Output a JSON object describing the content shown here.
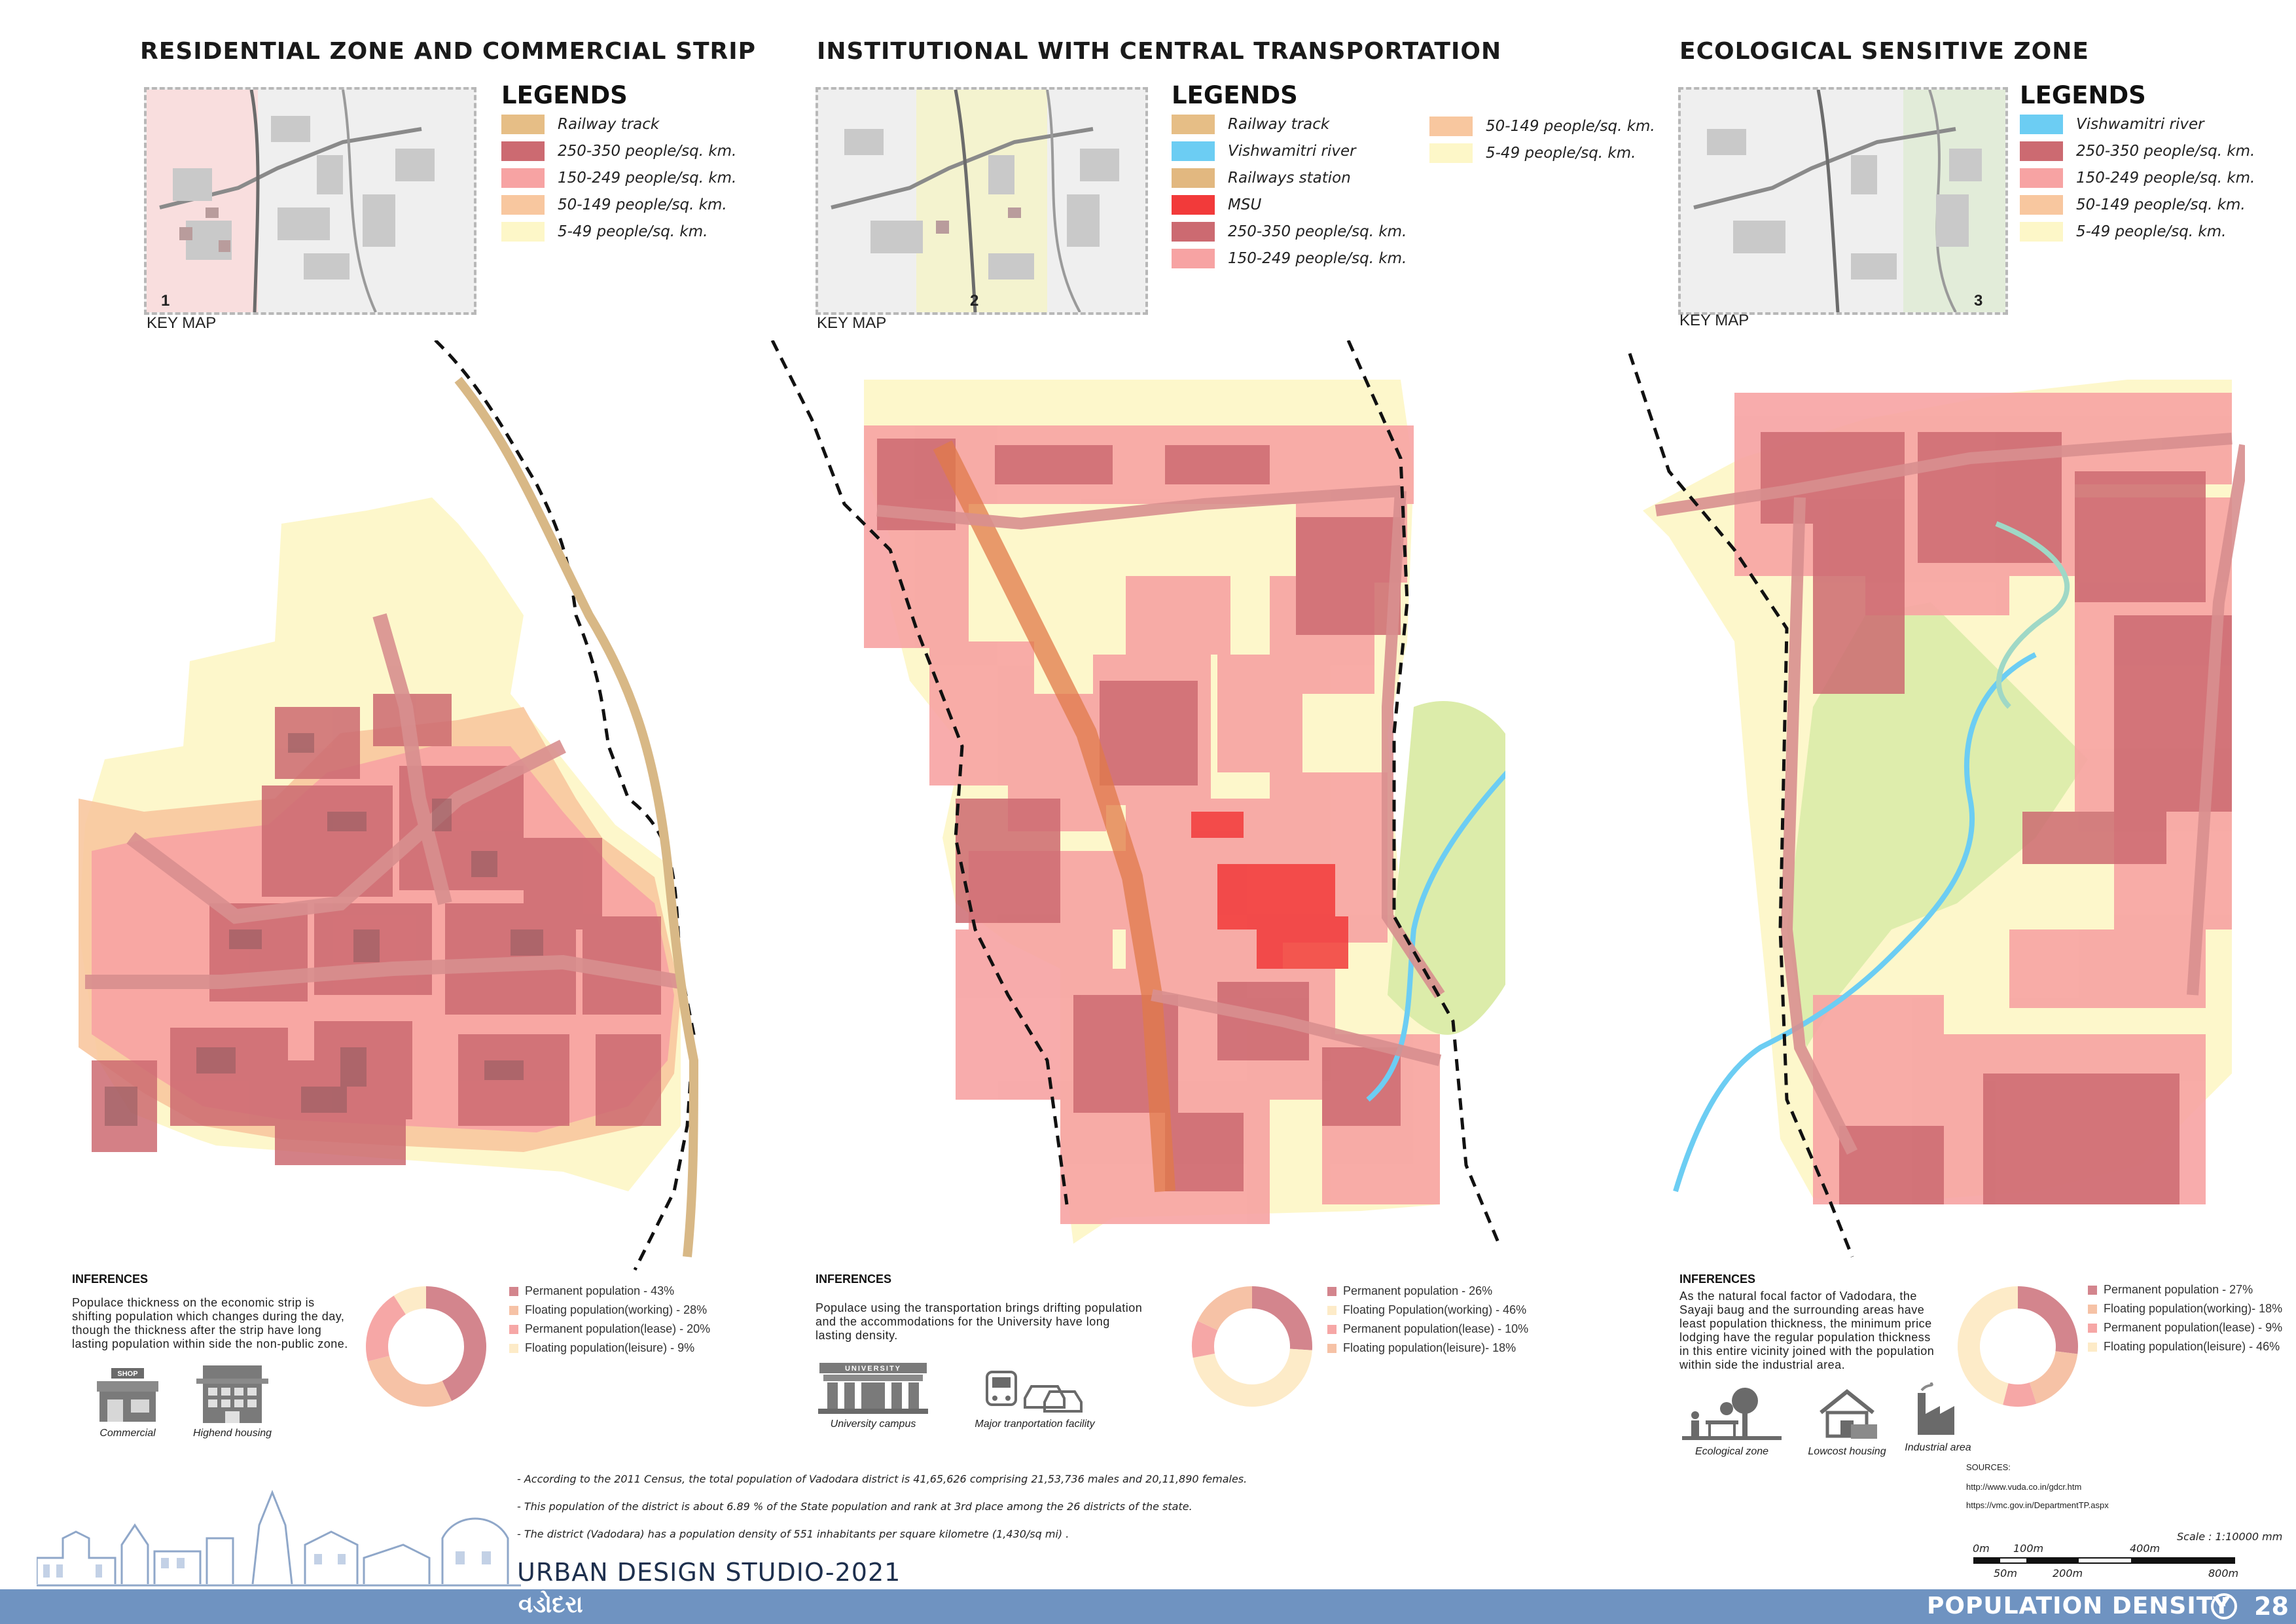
{
  "colors": {
    "railway": "#e6be86",
    "river": "#6ccdf3",
    "station": "#e2b880",
    "msu": "#f23a3a",
    "d250_350": "#cc6a71",
    "d150_249": "#f7a3a3",
    "d50_149": "#f8c79f",
    "d5_49": "#fdf7c8",
    "ecoPark": "#dcecaa",
    "footer": "#6f93c1",
    "pieDark": "#d3858d",
    "pieMid": "#f6a7a6",
    "pieLight": "#f6c2a6",
    "pieCream": "#fdebc8"
  },
  "sections": [
    {
      "title": "RESIDENTIAL ZONE AND COMMERCIAL STRIP",
      "keymap_number": "1",
      "keymap_label": "KEY MAP",
      "legends_title": "LEGENDS",
      "legend": [
        {
          "label": "Railway track",
          "color": "#e6be86"
        },
        {
          "label": "250-350 people/sq. km.",
          "color": "#cc6a71"
        },
        {
          "label": "150-249 people/sq. km.",
          "color": "#f7a3a3"
        },
        {
          "label": "50-149 people/sq. km.",
          "color": "#f8c79f"
        },
        {
          "label": "5-49 people/sq. km.",
          "color": "#fdf7c8"
        }
      ],
      "inferences_title": "INFERENCES",
      "inferences_text": "Populace thickness on the economic strip is shifting population which changes during the day, though the thickness after the strip have long lasting population within side the non-public zone.",
      "pie": [
        {
          "label": "Permanent population - 43%",
          "value": 43,
          "color": "#d3858d"
        },
        {
          "label": "Floating population(working) - 28%",
          "value": 28,
          "color": "#f6c2a6"
        },
        {
          "label": "Permanent population(lease) - 20%",
          "value": 20,
          "color": "#f6a7a6"
        },
        {
          "label": "Floating population(leisure) - 9%",
          "value": 9,
          "color": "#fdebc8"
        }
      ],
      "icons": [
        {
          "icon": "shop-icon",
          "caption": "Commercial",
          "sign": "SHOP"
        },
        {
          "icon": "housing-icon",
          "caption": "Highend housing"
        }
      ]
    },
    {
      "title": "INSTITUTIONAL WITH CENTRAL TRANSPORTATION",
      "keymap_number": "2",
      "keymap_label": "KEY MAP",
      "legends_title": "LEGENDS",
      "legend": [
        {
          "label": "Railway track",
          "color": "#e6be86"
        },
        {
          "label": "Vishwamitri river",
          "color": "#6ccdf3"
        },
        {
          "label": "Railways station",
          "color": "#e2b880"
        },
        {
          "label": "MSU",
          "color": "#f23a3a"
        },
        {
          "label": "250-350 people/sq. km.",
          "color": "#cc6a71"
        },
        {
          "label": "150-249 people/sq. km.",
          "color": "#f7a3a3"
        },
        {
          "label": "50-149 people/sq. km.",
          "color": "#f8c79f"
        },
        {
          "label": "5-49 people/sq. km.",
          "color": "#fdf7c8"
        }
      ],
      "inferences_title": "INFERENCES",
      "inferences_text": "Populace using the transportation brings drifting population and the accommodations for the University have long lasting density.",
      "pie": [
        {
          "label": "Permanent population - 26%",
          "value": 26,
          "color": "#d3858d"
        },
        {
          "label": "Floating Population(working) - 46%",
          "value": 46,
          "color": "#fdebc8"
        },
        {
          "label": "Permanent population(lease) - 10%",
          "value": 10,
          "color": "#f6a7a6"
        },
        {
          "label": "Floating population(leisure)- 18%",
          "value": 18,
          "color": "#f6c2a6"
        }
      ],
      "icons": [
        {
          "icon": "university-icon",
          "caption": "University campus",
          "sign": "UNIVERSITY"
        },
        {
          "icon": "transport-icon",
          "caption": "Major tranportation facility"
        }
      ]
    },
    {
      "title": "ECOLOGICAL SENSITIVE ZONE",
      "keymap_number": "3",
      "keymap_label": "KEY MAP",
      "legends_title": "LEGENDS",
      "legend": [
        {
          "label": "Vishwamitri river",
          "color": "#6ccdf3"
        },
        {
          "label": "250-350 people/sq. km.",
          "color": "#cc6a71"
        },
        {
          "label": "150-249 people/sq. km.",
          "color": "#f7a3a3"
        },
        {
          "label": "50-149 people/sq. km.",
          "color": "#f8c79f"
        },
        {
          "label": "5-49 people/sq. km.",
          "color": "#fdf7c8"
        }
      ],
      "inferences_title": "INFERENCES",
      "inferences_text": "As the natural focal factor of Vadodara, the Sayaji baug and the surrounding areas have least population thickness, the minimum price lodging have the regular population thickness in this entire vicinity joined with the population within side the industrial area.",
      "pie": [
        {
          "label": "Permanent population - 27%",
          "value": 27,
          "color": "#d3858d"
        },
        {
          "label": "Floating population(working)- 18%",
          "value": 18,
          "color": "#f6c2a6"
        },
        {
          "label": "Permanent population(lease) - 9%",
          "value": 9,
          "color": "#f6a7a6"
        },
        {
          "label": "Floating population(leisure) - 46%",
          "value": 46,
          "color": "#fdebc8"
        }
      ],
      "icons": [
        {
          "icon": "ecological-zone-icon",
          "caption": "Ecological zone"
        },
        {
          "icon": "lowcost-housing-icon",
          "caption": "Lowcost housing"
        },
        {
          "icon": "industrial-icon",
          "caption": "Industrial area"
        }
      ],
      "sources_title": "SOURCES:",
      "sources": [
        "http://www.vuda.co.in/gdcr.htm",
        "https://vmc.gov.in/DepartmentTP.aspx"
      ]
    }
  ],
  "notes": [
    "- According to the 2011 Census, the total population of Vadodara district is 41,65,626     comprising   21,53,736 males and 20,11,890 females.",
    "- This population of the district is about 6.89 % of the State population and rank at 3rd place among the 26 districts of the state.",
    "- The district (Vadodara) has a population density of 551 inhabitants per square kilometre (1,430/sq mi) ."
  ],
  "scale": {
    "label": "Scale :   1:10000 mm",
    "top_ticks": [
      "0m",
      "100m",
      "400m"
    ],
    "bottom_ticks": [
      "50m",
      "200m",
      "800m"
    ]
  },
  "footer": {
    "studio": "URBAN DESIGN STUDIO-2021",
    "city_gujarati": "વડોદરા",
    "title": "POPULATION DENSITY",
    "page": "28"
  }
}
